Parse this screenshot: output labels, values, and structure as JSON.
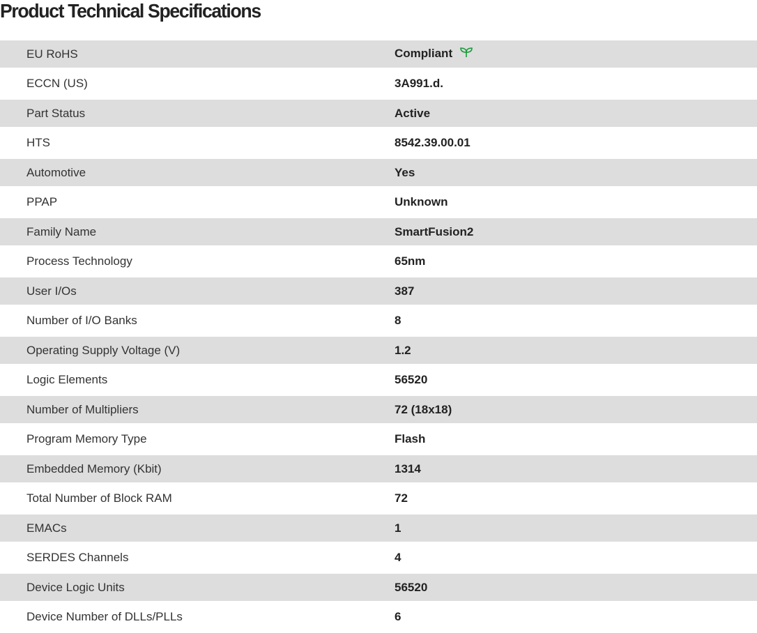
{
  "title": "Product Technical Specifications",
  "accent_color": "#1a9a3a",
  "rows": [
    {
      "label": "EU RoHS",
      "value": "Compliant",
      "icon": "leaf-icon"
    },
    {
      "label": "ECCN (US)",
      "value": "3A991.d."
    },
    {
      "label": "Part Status",
      "value": "Active"
    },
    {
      "label": "HTS",
      "value": "8542.39.00.01"
    },
    {
      "label": "Automotive",
      "value": "Yes"
    },
    {
      "label": "PPAP",
      "value": "Unknown"
    },
    {
      "label": "Family Name",
      "value": "SmartFusion2"
    },
    {
      "label": "Process Technology",
      "value": "65nm"
    },
    {
      "label": "User I/Os",
      "value": "387"
    },
    {
      "label": "Number of I/O Banks",
      "value": "8"
    },
    {
      "label": "Operating Supply Voltage (V)",
      "value": "1.2"
    },
    {
      "label": "Logic Elements",
      "value": "56520"
    },
    {
      "label": "Number of Multipliers",
      "value": "72 (18x18)"
    },
    {
      "label": "Program Memory Type",
      "value": "Flash"
    },
    {
      "label": "Embedded Memory (Kbit)",
      "value": "1314"
    },
    {
      "label": "Total Number of Block RAM",
      "value": "72"
    },
    {
      "label": "EMACs",
      "value": "1"
    },
    {
      "label": "SERDES Channels",
      "value": "4"
    },
    {
      "label": "Device Logic Units",
      "value": "56520"
    },
    {
      "label": "Device Number of DLLs/PLLs",
      "value": "6"
    }
  ]
}
